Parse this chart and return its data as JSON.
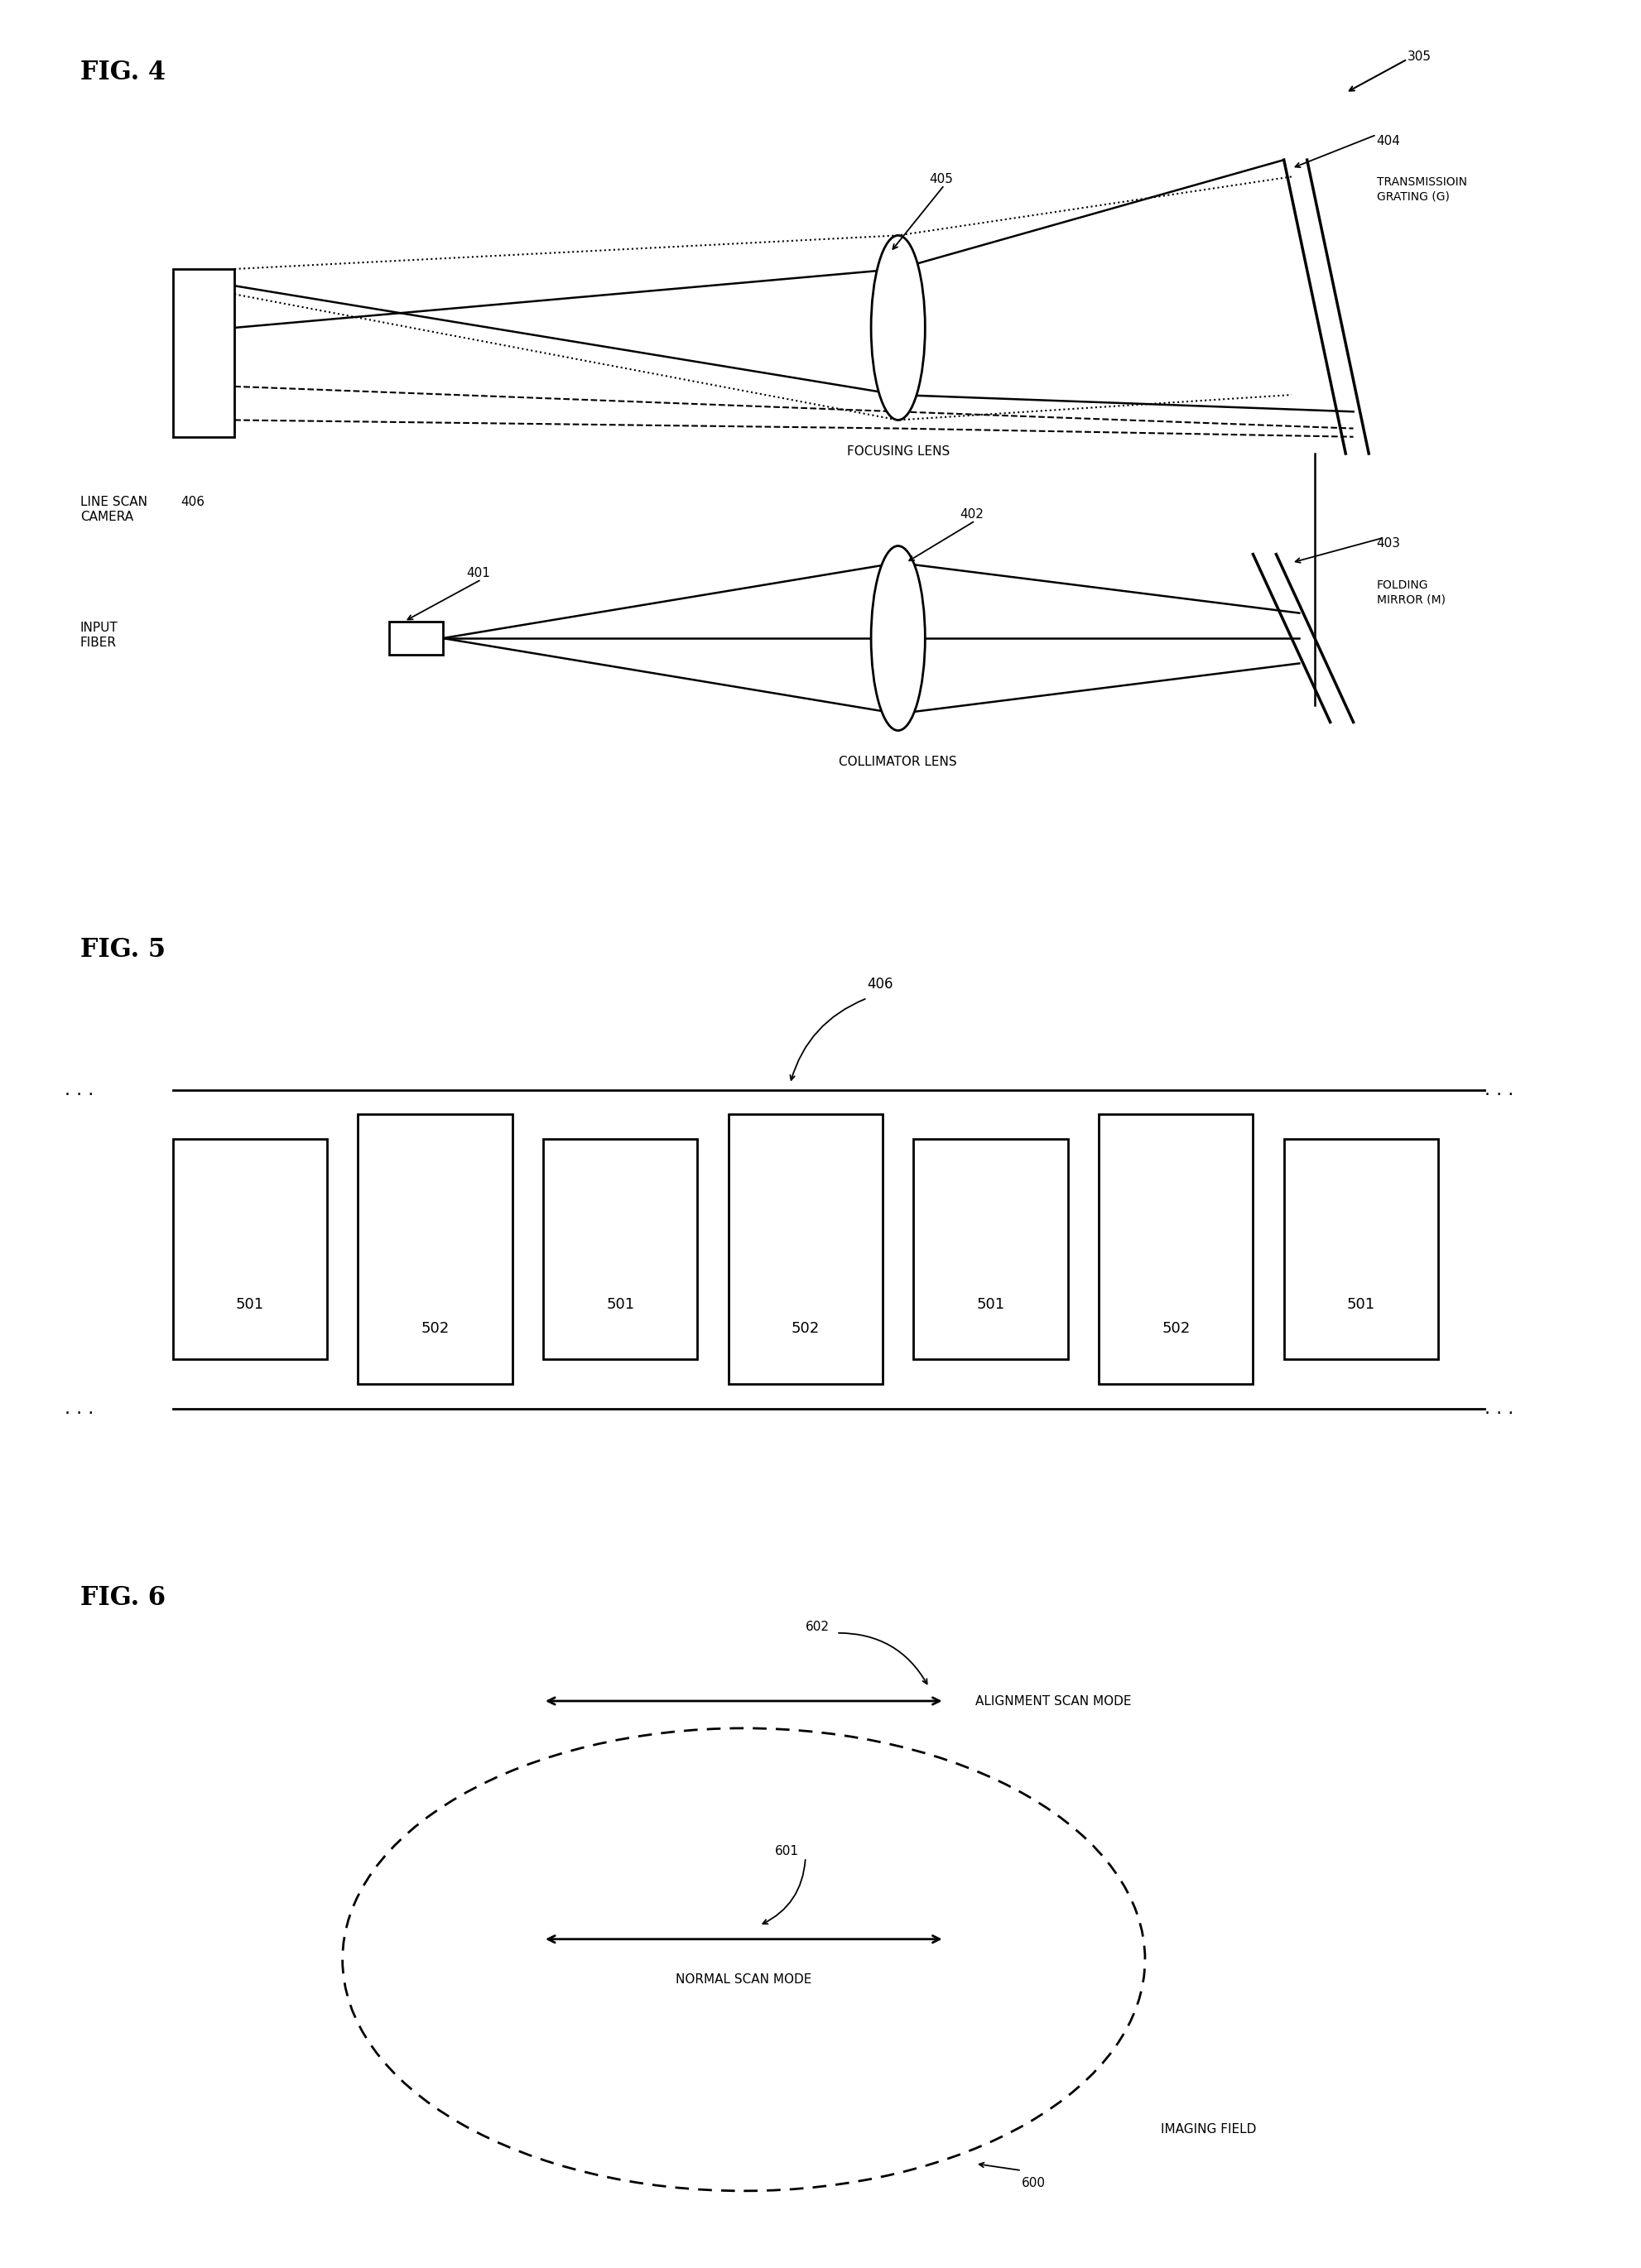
{
  "bg_color": "#ffffff",
  "fig4": {
    "title": "FIG. 4",
    "label_305": "305",
    "label_404": "404",
    "label_transmission": "TRANSMISSIOIN\nGRATING (G)",
    "label_405": "405",
    "label_focusing": "FOCUSING LENS",
    "label_line_scan": "LINE SCAN\nCAMERA",
    "label_406": "406",
    "label_403": "403",
    "label_folding": "FOLDING\nMIRROR (M)",
    "label_402": "402",
    "label_collimator": "COLLIMATOR LENS",
    "label_401": "401",
    "label_input": "INPUT\nFIBER"
  },
  "fig5": {
    "title": "FIG. 5",
    "label_406": "406",
    "label_501": "501",
    "label_502": "502"
  },
  "fig6": {
    "title": "FIG. 6",
    "label_600": "600",
    "label_601": "601",
    "label_602": "602",
    "text_imaging": "IMAGING FIELD",
    "text_normal": "NORMAL SCAN MODE",
    "text_alignment": "ALIGNMENT SCAN MODE"
  }
}
